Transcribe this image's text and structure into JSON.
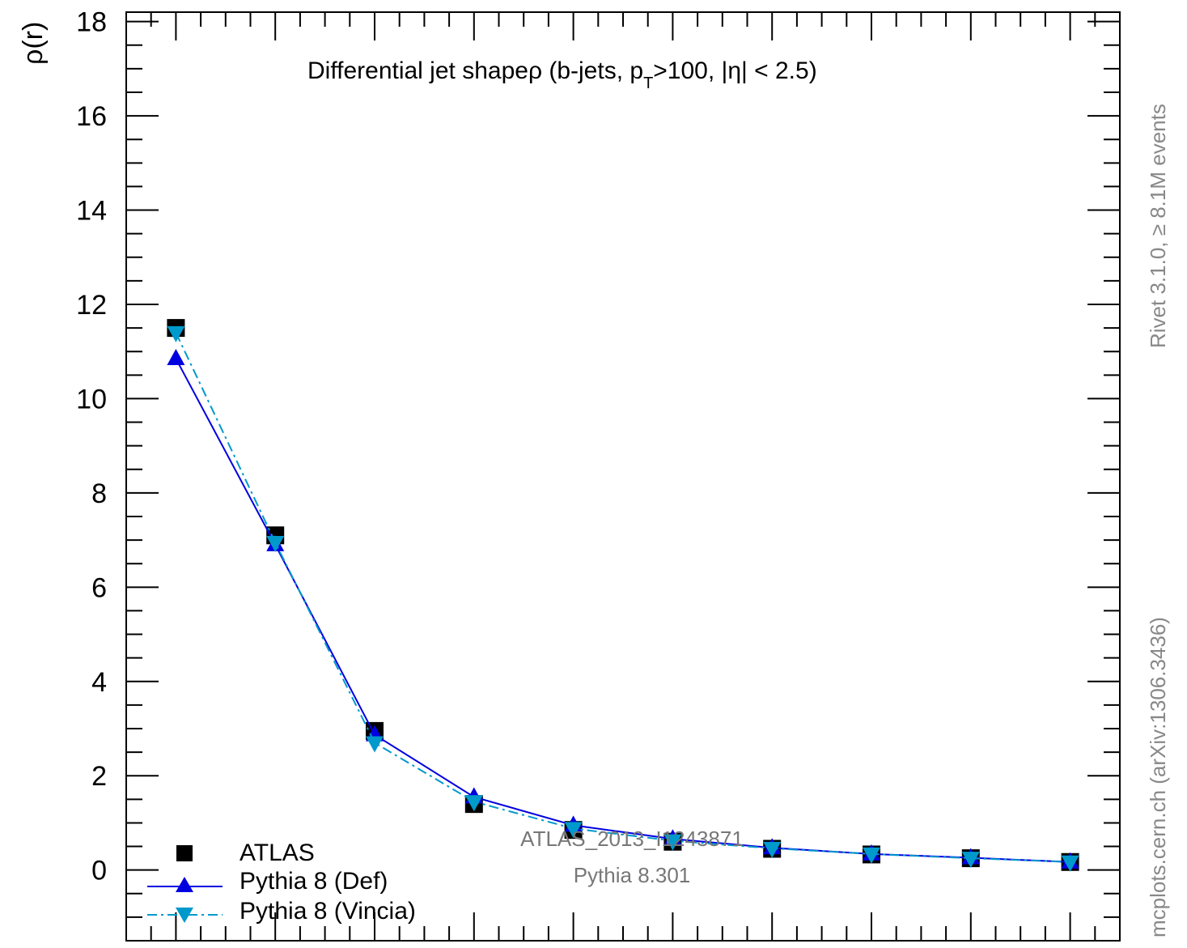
{
  "chart_data": {
    "type": "line",
    "title": "Differential jet shapeρ (b-jets, p",
    "title_sub": "T",
    "title_tail": ">100, |η| < 2.5)",
    "ylabel": "ρ(r)",
    "ylim": [
      -1.5,
      18.2
    ],
    "yticks": [
      0,
      2,
      4,
      6,
      8,
      10,
      12,
      14,
      16,
      18
    ],
    "xlim": [
      0,
      10
    ],
    "x": [
      0.5,
      1.5,
      2.5,
      3.5,
      4.5,
      5.5,
      6.5,
      7.5,
      8.5,
      9.5
    ],
    "grid": false,
    "legend_position": "bottom-left",
    "series": [
      {
        "name": "ATLAS",
        "marker": "square",
        "color": "#000000",
        "values": [
          11.5,
          7.1,
          2.95,
          1.4,
          0.85,
          0.6,
          0.45,
          0.33,
          0.25,
          0.17
        ]
      },
      {
        "name": "Pythia 8 (Def)",
        "marker": "triangle-up",
        "line": "solid",
        "color": "#0000e0",
        "values": [
          10.85,
          6.9,
          2.87,
          1.55,
          0.95,
          0.66,
          0.47,
          0.34,
          0.26,
          0.17
        ]
      },
      {
        "name": "Pythia 8 (Vincia)",
        "marker": "triangle-down",
        "line": "dashdot",
        "color": "#0099cc",
        "values": [
          11.4,
          6.95,
          2.7,
          1.45,
          0.88,
          0.62,
          0.46,
          0.34,
          0.25,
          0.17
        ]
      }
    ],
    "annotations": [
      "ATLAS_2013_I1243871",
      "Pythia 8.301"
    ]
  },
  "side_labels": {
    "rivet": "Rivet 3.1.0, ≥ 8.1M events",
    "mcplots": "mcplots.cern.ch (arXiv:1306.3436)"
  }
}
